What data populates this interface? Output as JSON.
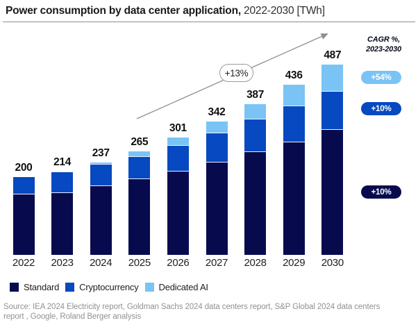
{
  "title": {
    "bold": "Power consumption by data center application,",
    "regular": " 2022-2030 [TWh]"
  },
  "chart_data": {
    "type": "bar",
    "stacked": true,
    "title": "Power consumption by data center application, 2022-2030 [TWh]",
    "unit": "TWh",
    "categories": [
      "2022",
      "2023",
      "2024",
      "2025",
      "2026",
      "2027",
      "2028",
      "2029",
      "2030"
    ],
    "series": [
      {
        "name": "Standard",
        "color": "#070B4E",
        "values": [
          155,
          159,
          176,
          194,
          213,
          237,
          264,
          288,
          320
        ]
      },
      {
        "name": "Cryptocurrency",
        "color": "#0649C0",
        "values": [
          45,
          52,
          55,
          57,
          66,
          75,
          83,
          92,
          99
        ]
      },
      {
        "name": "Dedicated AI",
        "color": "#79C4F5",
        "values": [
          0,
          3,
          6,
          14,
          22,
          30,
          40,
          56,
          68
        ]
      }
    ],
    "totals": [
      200,
      214,
      237,
      265,
      301,
      342,
      387,
      436,
      487
    ],
    "growth_annotation": "+13%",
    "legend_position": "bottom",
    "grid": false,
    "ylim": [
      0,
      500
    ]
  },
  "cagr": {
    "heading_line1": "CAGR %,",
    "heading_line2": "2023-2030",
    "pills": [
      {
        "label": "+54%",
        "color": "#79C4F5"
      },
      {
        "label": "+10%",
        "color": "#0649C0"
      },
      {
        "label": "+10%",
        "color": "#070B4E"
      }
    ]
  },
  "source": {
    "line1": "Source: IEA 2024 Electricity report, Goldman Sachs 2024 data centers report, S&P Global 2024 data centers",
    "line2": "report , Google, Roland Berger analysis"
  }
}
